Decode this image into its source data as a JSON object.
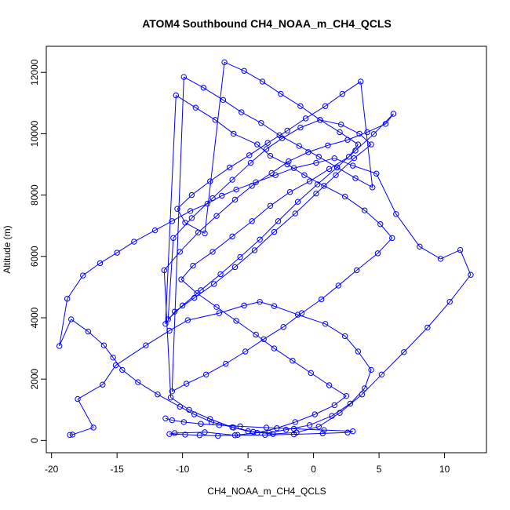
{
  "chart_data": {
    "type": "scatter",
    "title": "ATOM4 Southbound CH4_NOAA_m_CH4_QCLS",
    "xlabel": "CH4_NOAA_m_CH4_QCLS",
    "ylabel": "Altitude (m)",
    "xlim": [
      -20.4,
      13.2
    ],
    "ylim": [
      -400,
      12850
    ],
    "xticks": [
      -20,
      -15,
      -10,
      -5,
      0,
      5,
      10
    ],
    "yticks": [
      0,
      2000,
      4000,
      6000,
      8000,
      10000,
      12000
    ],
    "grid": false,
    "legend": "none",
    "color": "#0000ff",
    "series": [
      {
        "x": [
          -18.6,
          -18.4,
          -16.8,
          -18.0,
          -16.1,
          -15.1,
          -12.8,
          -11.0,
          -9.6,
          -7.2,
          -5.3,
          -4.1,
          -3.0,
          -1.2,
          0.9,
          2.4,
          3.4,
          4.4,
          3.9,
          2.8,
          1.4,
          -0.3,
          -2.1,
          -3.4,
          -5.0,
          -6.1,
          -7.8,
          -9.1,
          -10.2,
          -11.9,
          -13.4,
          -14.6,
          -15.3,
          -16.0,
          -17.2,
          -18.5,
          -19.4,
          -18.8,
          -17.6,
          -16.3,
          -15.0,
          -13.7,
          -12.1,
          -10.8,
          -9.4,
          -8.1,
          -7.0,
          -5.9,
          -4.4,
          -2.9,
          -1.5,
          0.2,
          1.6,
          3.0,
          4.8,
          6.3,
          8.1,
          9.7,
          11.2,
          12.0,
          10.4,
          8.7,
          6.9,
          5.2,
          3.7,
          2.0,
          0.4,
          -1.3,
          -3.1,
          -4.6,
          -6.2,
          -7.9,
          -9.5,
          -10.9,
          -11.4,
          -10.2,
          -8.8,
          -7.4,
          -6.0,
          -4.7,
          -3.2,
          -1.9,
          -0.4,
          1.1,
          2.6,
          4.1,
          5.5,
          6.1,
          4.6,
          3.2,
          1.8,
          0.3,
          -1.2,
          -2.7,
          -4.1,
          -5.6,
          -7.1,
          -8.6,
          -10.0,
          -11.1,
          -10.7,
          -9.3,
          -7.7,
          -6.2,
          -4.8,
          -3.6,
          -2.4,
          -1.0,
          0.5,
          2.1,
          3.5,
          4.4,
          3.1,
          1.7,
          0.2,
          -1.4,
          -3.0,
          -4.5,
          -6.0,
          -7.6,
          -9.1,
          -10.6,
          -11.3,
          -10.5,
          -9.0,
          -7.5,
          -6.1,
          -4.3,
          -3.3,
          -2.0,
          -0.7,
          0.8,
          2.4,
          3.9,
          5.1,
          6.0,
          4.9,
          3.3,
          1.9,
          0.6,
          -0.9,
          -2.3,
          -3.8,
          -5.2,
          -6.7,
          -8.2,
          -9.7,
          -10.8,
          -9.9,
          -8.4,
          -6.9,
          -5.5,
          -4.0,
          -2.6,
          -1.1,
          0.4,
          1.8,
          3.2,
          4.5,
          3.6,
          2.2,
          0.9,
          -0.6,
          -2.0,
          -3.5,
          -4.9,
          -6.4,
          -7.9,
          -9.3,
          -10.4,
          -9.8,
          -8.3,
          -6.8,
          -5.3,
          -3.9,
          -2.5,
          -1.0,
          0.5,
          2.0,
          3.4,
          2.7,
          1.2,
          -0.3,
          -1.8,
          -3.3,
          -4.7,
          -6.2,
          -7.7,
          -9.2,
          -10.1,
          -8.9,
          -7.4,
          -5.9,
          -4.4,
          -3.0,
          -1.6,
          -0.2,
          1.2,
          2.5,
          1.6,
          0.1,
          -1.4,
          -2.8,
          -4.3,
          -5.8,
          -7.3,
          -8.7,
          -9.8,
          -11.0,
          -10.6,
          -8.3,
          -6.0,
          -3.7,
          -1.5,
          0.7,
          2.6,
          3.0,
          0.8,
          -1.5,
          -3.6,
          -5.6,
          -7.2,
          -8.6,
          -9.9,
          -10.8,
          -11.3
        ],
        "y": [
          180,
          190,
          420,
          1350,
          1820,
          2450,
          3100,
          3580,
          3920,
          4150,
          4400,
          4520,
          4380,
          4100,
          3800,
          3400,
          2900,
          2300,
          1700,
          1200,
          800,
          500,
          350,
          250,
          300,
          420,
          600,
          850,
          1100,
          1500,
          1900,
          2300,
          2700,
          3100,
          3550,
          3950,
          3080,
          4620,
          5380,
          5780,
          6120,
          6480,
          6850,
          7150,
          7480,
          7720,
          7980,
          8180,
          8420,
          8650,
          8880,
          9050,
          9200,
          8960,
          8700,
          7380,
          6320,
          5920,
          6210,
          5400,
          4520,
          3680,
          2880,
          2150,
          1500,
          900,
          450,
          260,
          210,
          280,
          430,
          700,
          1000,
          1400,
          5550,
          6150,
          6780,
          7320,
          7850,
          8300,
          8720,
          9100,
          9400,
          9620,
          9800,
          10050,
          10320,
          10650,
          9990,
          9450,
          8900,
          8350,
          7780,
          7150,
          6550,
          5980,
          5420,
          4900,
          4400,
          3950,
          6600,
          7250,
          7900,
          8500,
          9050,
          9500,
          9850,
          10200,
          10450,
          10300,
          10000,
          9650,
          9200,
          8650,
          8050,
          7400,
          6800,
          6200,
          5650,
          5100,
          4650,
          4200,
          3800,
          11250,
          10850,
          10450,
          10000,
          9650,
          9280,
          9000,
          8650,
          8300,
          7950,
          7500,
          7050,
          6600,
          6100,
          5550,
          5050,
          4600,
          4150,
          3700,
          3300,
          2900,
          2500,
          2150,
          1850,
          1600,
          11850,
          11500,
          11100,
          10700,
          10350,
          9950,
          9600,
          9250,
          8900,
          8550,
          8250,
          11700,
          11300,
          10900,
          10500,
          10100,
          9700,
          9300,
          8900,
          8450,
          8000,
          7550,
          7100,
          6750,
          12330,
          12050,
          11700,
          11300,
          10900,
          10450,
          10050,
          9650,
          9250,
          8850,
          8450,
          8100,
          7650,
          7150,
          6650,
          6150,
          5700,
          5250,
          4800,
          4350,
          3900,
          3450,
          3000,
          2600,
          2200,
          1800,
          1450,
          1150,
          850,
          600,
          400,
          250,
          180,
          150,
          170,
          190,
          210,
          240,
          270,
          170,
          180,
          200,
          230,
          260,
          300,
          340,
          380,
          420,
          460,
          500,
          540,
          600,
          660,
          720
        ]
      }
    ]
  }
}
